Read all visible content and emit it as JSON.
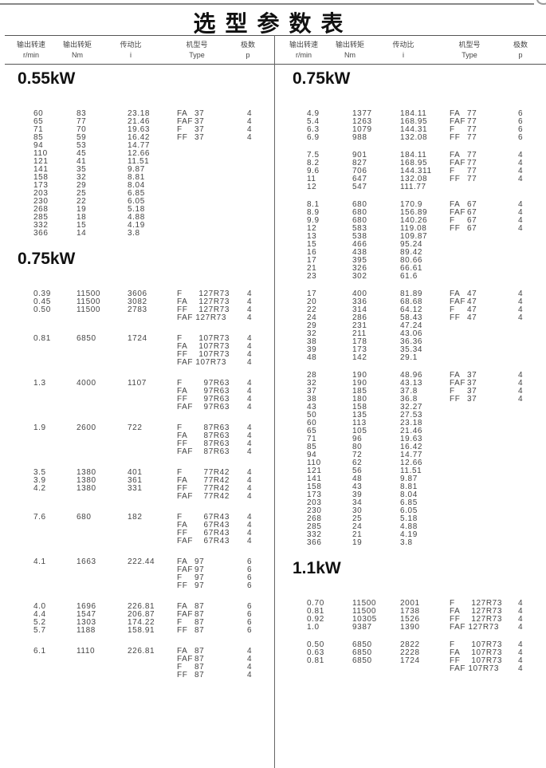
{
  "title": "选型参数表",
  "headers": [
    {
      "cn": "输出转速",
      "en": "r/min"
    },
    {
      "cn": "输出转矩",
      "en": "Nm"
    },
    {
      "cn": "传动比",
      "en": "i"
    },
    {
      "cn": "机型号",
      "en": "Type"
    },
    {
      "cn": "极数",
      "en": "p"
    }
  ],
  "left": [
    {
      "power": "0.55kW",
      "groups": [
        [
          [
            "60",
            "83",
            "23.18",
            "FA|37",
            "4"
          ],
          [
            "65",
            "77",
            "21.46",
            "FAF|37",
            "4"
          ],
          [
            "71",
            "70",
            "19.63",
            "F|37",
            "4"
          ],
          [
            "85",
            "59",
            "16.42",
            "FF|37",
            "4"
          ],
          [
            "94",
            "53",
            "14.77",
            "",
            ""
          ],
          [
            "110",
            "45",
            "12.66",
            "",
            ""
          ],
          [
            "121",
            "41",
            "11.51",
            "",
            ""
          ],
          [
            "141",
            "35",
            "9.87",
            "",
            ""
          ],
          [
            "158",
            "32",
            "8.81",
            "",
            ""
          ],
          [
            "173",
            "29",
            "8.04",
            "",
            ""
          ],
          [
            "203",
            "25",
            "6.85",
            "",
            ""
          ],
          [
            "230",
            "22",
            "6.05",
            "",
            ""
          ],
          [
            "268",
            "19",
            "5.18",
            "",
            ""
          ],
          [
            "285",
            "18",
            "4.88",
            "",
            ""
          ],
          [
            "332",
            "15",
            "4.19",
            "",
            ""
          ],
          [
            "366",
            "14",
            "3.8",
            "",
            ""
          ]
        ]
      ]
    },
    {
      "power": "0.75kW",
      "groups": [
        [
          [
            "0.39",
            "11500",
            "3606",
            "F|127R73",
            "4"
          ],
          [
            "0.45",
            "11500",
            "3082",
            "FA|127R73",
            "4"
          ],
          [
            "0.50",
            "11500",
            "2783",
            "FF|127R73",
            "4"
          ],
          [
            "",
            "",
            "",
            "FAF|127R73",
            "4"
          ]
        ],
        [
          [
            "0.81",
            "6850",
            "1724",
            "F|107R73",
            "4"
          ],
          [
            "",
            "",
            "",
            "FA|107R73",
            "4"
          ],
          [
            "",
            "",
            "",
            "FF|107R73",
            "4"
          ],
          [
            "",
            "",
            "",
            "FAF|107R73",
            "4"
          ]
        ],
        [
          [
            "1.3",
            "4000",
            "1107",
            "F|97R63",
            "4"
          ],
          [
            "",
            "",
            "",
            "FA|97R63",
            "4"
          ],
          [
            "",
            "",
            "",
            "FF|97R63",
            "4"
          ],
          [
            "",
            "",
            "",
            "FAF|97R63",
            "4"
          ]
        ],
        [
          [
            "1.9",
            "2600",
            "722",
            "F|87R63",
            "4"
          ],
          [
            "",
            "",
            "",
            "FA|87R63",
            "4"
          ],
          [
            "",
            "",
            "",
            "FF|87R63",
            "4"
          ],
          [
            "",
            "",
            "",
            "FAF|87R63",
            "4"
          ]
        ],
        [
          [
            "3.5",
            "1380",
            "401",
            "F|77R42",
            "4"
          ],
          [
            "3.9",
            "1380",
            "361",
            "FA|77R42",
            "4"
          ],
          [
            "4.2",
            "1380",
            "331",
            "FF|77R42",
            "4"
          ],
          [
            "",
            "",
            "",
            "FAF|77R42",
            "4"
          ]
        ],
        [
          [
            "7.6",
            "680",
            "182",
            "F|67R43",
            "4"
          ],
          [
            "",
            "",
            "",
            "FA|67R43",
            "4"
          ],
          [
            "",
            "",
            "",
            "FF|67R43",
            "4"
          ],
          [
            "",
            "",
            "",
            "FAF|67R43",
            "4"
          ]
        ],
        [
          [
            "4.1",
            "1663",
            "222.44",
            "FA|97",
            "6"
          ],
          [
            "",
            "",
            "",
            "FAF|97",
            "6"
          ],
          [
            "",
            "",
            "",
            "F|97",
            "6"
          ],
          [
            "",
            "",
            "",
            "FF|97",
            "6"
          ]
        ],
        [
          [
            "4.0",
            "1696",
            "226.81",
            "FA|87",
            "6"
          ],
          [
            "4.4",
            "1547",
            "206.87",
            "FAF|87",
            "6"
          ],
          [
            "5.2",
            "1303",
            "174.22",
            "F|87",
            "6"
          ],
          [
            "5.7",
            "1188",
            "158.91",
            "FF|87",
            "6"
          ]
        ],
        [
          [
            "6.1",
            "1110",
            "226.81",
            "FA|87",
            "4"
          ],
          [
            "",
            "",
            "",
            "FAF|87",
            "4"
          ],
          [
            "",
            "",
            "",
            "F|87",
            "4"
          ],
          [
            "",
            "",
            "",
            "FF|87",
            "4"
          ]
        ]
      ]
    }
  ],
  "right": [
    {
      "power": "0.75kW",
      "groups": [
        [
          [
            "4.9",
            "1377",
            "184.11",
            "FA|77",
            "6"
          ],
          [
            "5.4",
            "1263",
            "168.95",
            "FAF|77",
            "6"
          ],
          [
            "6.3",
            "1079",
            "144.31",
            "F|77",
            "6"
          ],
          [
            "6.9",
            "988",
            "132.08",
            "FF|77",
            "6"
          ]
        ],
        [
          [
            "7.5",
            "901",
            "184.11",
            "FA|77",
            "4"
          ],
          [
            "8.2",
            "827",
            "168.95",
            "FAF|77",
            "4"
          ],
          [
            "9.6",
            "706",
            "144.311",
            "F|77",
            "4"
          ],
          [
            "11",
            "647",
            "132.08",
            "FF|77",
            "4"
          ],
          [
            "12",
            "547",
            "111.77",
            "",
            ""
          ]
        ],
        [
          [
            "8.1",
            "680",
            "170.9",
            "FA|67",
            "4"
          ],
          [
            "8.9",
            "680",
            "156.89",
            "FAF|67",
            "4"
          ],
          [
            "9.9",
            "680",
            "140.26",
            "F|67",
            "4"
          ],
          [
            "12",
            "583",
            "119.08",
            "FF|67",
            "4"
          ],
          [
            "13",
            "538",
            "109.87",
            "",
            ""
          ],
          [
            "15",
            "466",
            "95.24",
            "",
            ""
          ],
          [
            "16",
            "438",
            "89.42",
            "",
            ""
          ],
          [
            "17",
            "395",
            "80.66",
            "",
            ""
          ],
          [
            "21",
            "326",
            "66.61",
            "",
            ""
          ],
          [
            "23",
            "302",
            "61.6",
            "",
            ""
          ]
        ],
        [
          [
            "17",
            "400",
            "81.89",
            "FA|47",
            "4"
          ],
          [
            "20",
            "336",
            "68.68",
            "FAF|47",
            "4"
          ],
          [
            "22",
            "314",
            "64.12",
            "F|47",
            "4"
          ],
          [
            "24",
            "286",
            "58.43",
            "FF|47",
            "4"
          ],
          [
            "29",
            "231",
            "47.24",
            "",
            ""
          ],
          [
            "32",
            "211",
            "43.06",
            "",
            ""
          ],
          [
            "38",
            "178",
            "36.36",
            "",
            ""
          ],
          [
            "39",
            "173",
            "35.34",
            "",
            ""
          ],
          [
            "48",
            "142",
            "29.1",
            "",
            ""
          ]
        ],
        [
          [
            "28",
            "190",
            "48.96",
            "FA|37",
            "4"
          ],
          [
            "32",
            "190",
            "43.13",
            "FAF|37",
            "4"
          ],
          [
            "37",
            "185",
            "37.8",
            "F|37",
            "4"
          ],
          [
            "38",
            "180",
            "36.8",
            "FF|37",
            "4"
          ],
          [
            "43",
            "158",
            "32.27",
            "",
            ""
          ],
          [
            "50",
            "135",
            "27.53",
            "",
            ""
          ],
          [
            "60",
            "113",
            "23.18",
            "",
            ""
          ],
          [
            "65",
            "105",
            "21.46",
            "",
            ""
          ],
          [
            "71",
            "96",
            "19.63",
            "",
            ""
          ],
          [
            "85",
            "80",
            "16.42",
            "",
            ""
          ],
          [
            "94",
            "72",
            "14.77",
            "",
            ""
          ],
          [
            "110",
            "62",
            "12.66",
            "",
            ""
          ],
          [
            "121",
            "56",
            "11.51",
            "",
            ""
          ],
          [
            "141",
            "48",
            "9.87",
            "",
            ""
          ],
          [
            "158",
            "43",
            "8.81",
            "",
            ""
          ],
          [
            "173",
            "39",
            "8.04",
            "",
            ""
          ],
          [
            "203",
            "34",
            "6.85",
            "",
            ""
          ],
          [
            "230",
            "30",
            "6.05",
            "",
            ""
          ],
          [
            "268",
            "25",
            "5.18",
            "",
            ""
          ],
          [
            "285",
            "24",
            "4.88",
            "",
            ""
          ],
          [
            "332",
            "21",
            "4.19",
            "",
            ""
          ],
          [
            "366",
            "19",
            "3.8",
            "",
            ""
          ]
        ]
      ]
    },
    {
      "power": "1.1kW",
      "groups": [
        [
          [
            "0.70",
            "11500",
            "2001",
            "F|127R73",
            "4"
          ],
          [
            "0.81",
            "11500",
            "1738",
            "FA|127R73",
            "4"
          ],
          [
            "0.92",
            "10305",
            "1526",
            "FF|127R73",
            "4"
          ],
          [
            "1.0",
            "9387",
            "1390",
            "FAF|127R73",
            "4"
          ]
        ],
        [
          [
            "0.50",
            "6850",
            "2822",
            "F|107R73",
            "4"
          ],
          [
            "0.63",
            "6850",
            "2228",
            "FA|107R73",
            "4"
          ],
          [
            "0.81",
            "6850",
            "1724",
            "FF|107R73",
            "4"
          ],
          [
            "",
            "",
            "",
            "FAF|107R73",
            "4"
          ]
        ]
      ]
    }
  ]
}
